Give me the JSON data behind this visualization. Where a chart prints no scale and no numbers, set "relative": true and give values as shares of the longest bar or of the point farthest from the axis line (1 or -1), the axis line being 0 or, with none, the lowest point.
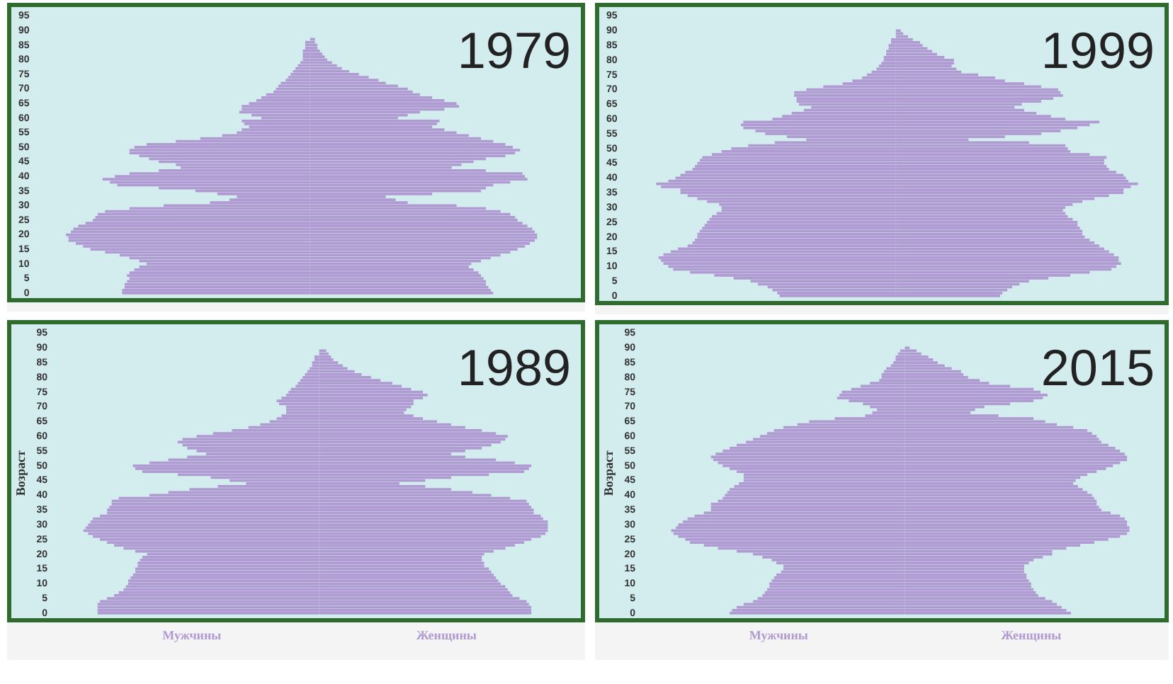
{
  "chart_data": [
    {
      "type": "bar",
      "title": "1979",
      "orientation": "horizontal",
      "relative": true,
      "tick_labels": "y",
      "categories": [
        "95",
        null,
        null,
        null,
        null,
        "90",
        null,
        null,
        null,
        null,
        "85",
        null,
        null,
        null,
        null,
        "80",
        null,
        null,
        null,
        null,
        "75",
        null,
        null,
        null,
        null,
        "70",
        null,
        null,
        null,
        null,
        "65",
        null,
        null,
        null,
        null,
        "60",
        null,
        null,
        null,
        null,
        "55",
        null,
        null,
        null,
        null,
        "50",
        null,
        null,
        null,
        null,
        "45",
        null,
        null,
        null,
        null,
        "40",
        null,
        null,
        null,
        null,
        "35",
        null,
        null,
        null,
        null,
        "30",
        null,
        null,
        null,
        null,
        "25",
        null,
        null,
        null,
        null,
        "20",
        null,
        null,
        null,
        null,
        "15",
        null,
        null,
        null,
        null,
        "10",
        null,
        null,
        null,
        null,
        "5",
        null,
        null,
        null,
        null,
        "0"
      ],
      "series": [
        {
          "color": "#b09ad2",
          "values": [
            0,
            0,
            0,
            0,
            0,
            0,
            0,
            0,
            0,
            -0.02,
            -0.02,
            -0.02,
            -0.03,
            -0.03,
            -0.03,
            -0.03,
            -0.04,
            -0.05,
            -0.06,
            -0.07,
            -0.08,
            -0.09,
            -0.1,
            -0.12,
            -0.13,
            -0.14,
            -0.15,
            -0.18,
            -0.2,
            -0.22,
            -0.25,
            -0.28,
            -0.28,
            -0.29,
            -0.24,
            -0.2,
            -0.28,
            -0.27,
            -0.25,
            -0.28,
            -0.3,
            -0.36,
            -0.45,
            -0.55,
            -0.67,
            -0.72,
            -0.74,
            -0.74,
            -0.7,
            -0.66,
            -0.62,
            -0.55,
            -0.53,
            -0.62,
            -0.74,
            -0.8,
            -0.85,
            -0.82,
            -0.79,
            -0.62,
            -0.47,
            -0.38,
            -0.3,
            -0.33,
            -0.41,
            -0.6,
            -0.74,
            -0.84,
            -0.87,
            -0.88,
            -0.89,
            -0.92,
            -0.95,
            -0.97,
            -0.98,
            -1,
            -0.99,
            -0.99,
            -0.96,
            -0.93,
            -0.9,
            -0.84,
            -0.78,
            -0.74,
            -0.7,
            -0.67,
            -0.7,
            -0.72,
            -0.74,
            -0.75,
            -0.74,
            -0.75,
            -0.76,
            -0.76,
            -0.77,
            -0.77
          ]
        },
        {
          "color": "#b09ad2",
          "values": [
            0,
            0,
            0,
            0,
            0,
            0,
            0,
            0,
            0.02,
            0.02,
            0.03,
            0.03,
            0.04,
            0.05,
            0.06,
            0.07,
            0.09,
            0.11,
            0.13,
            0.16,
            0.2,
            0.24,
            0.28,
            0.31,
            0.36,
            0.4,
            0.42,
            0.45,
            0.5,
            0.55,
            0.6,
            0.61,
            0.55,
            0.45,
            0.4,
            0.36,
            0.53,
            0.52,
            0.5,
            0.55,
            0.6,
            0.65,
            0.7,
            0.75,
            0.8,
            0.83,
            0.86,
            0.84,
            0.8,
            0.72,
            0.67,
            0.62,
            0.58,
            0.72,
            0.87,
            0.88,
            0.89,
            0.82,
            0.75,
            0.72,
            0.7,
            0.5,
            0.31,
            0.35,
            0.4,
            0.6,
            0.72,
            0.78,
            0.82,
            0.84,
            0.85,
            0.87,
            0.89,
            0.91,
            0.92,
            0.93,
            0.93,
            0.92,
            0.9,
            0.88,
            0.85,
            0.82,
            0.78,
            0.74,
            0.7,
            0.66,
            0.65,
            0.67,
            0.69,
            0.7,
            0.71,
            0.72,
            0.72,
            0.73,
            0.74,
            0.75
          ]
        }
      ]
    },
    {
      "type": "bar",
      "title": "1999",
      "orientation": "horizontal",
      "relative": true,
      "tick_labels": "y",
      "categories": [
        "95",
        null,
        null,
        null,
        null,
        "90",
        null,
        null,
        null,
        null,
        "85",
        null,
        null,
        null,
        null,
        "80",
        null,
        null,
        null,
        null,
        "75",
        null,
        null,
        null,
        null,
        "70",
        null,
        null,
        null,
        null,
        "65",
        null,
        null,
        null,
        null,
        "60",
        null,
        null,
        null,
        null,
        "55",
        null,
        null,
        null,
        null,
        "50",
        null,
        null,
        null,
        null,
        "45",
        null,
        null,
        null,
        null,
        "40",
        null,
        null,
        null,
        null,
        "35",
        null,
        null,
        null,
        null,
        "30",
        null,
        null,
        null,
        null,
        "25",
        null,
        null,
        null,
        null,
        "20",
        null,
        null,
        null,
        null,
        "15",
        null,
        null,
        null,
        null,
        "10",
        null,
        null,
        null,
        null,
        "5",
        null,
        null,
        null,
        null,
        "0"
      ],
      "series": [
        {
          "color": "#b09ad2",
          "values": [
            0,
            0,
            0,
            0,
            0,
            0,
            0,
            0,
            -0.02,
            -0.02,
            -0.03,
            -0.03,
            -0.04,
            -0.04,
            -0.05,
            -0.05,
            -0.06,
            -0.07,
            -0.08,
            -0.1,
            -0.12,
            -0.14,
            -0.18,
            -0.22,
            -0.3,
            -0.37,
            -0.42,
            -0.42,
            -0.41,
            -0.41,
            -0.4,
            -0.35,
            -0.38,
            -0.43,
            -0.47,
            -0.51,
            -0.63,
            -0.64,
            -0.63,
            -0.58,
            -0.54,
            -0.45,
            -0.37,
            -0.5,
            -0.61,
            -0.68,
            -0.72,
            -0.76,
            -0.8,
            -0.81,
            -0.82,
            -0.83,
            -0.84,
            -0.87,
            -0.89,
            -0.91,
            -0.94,
            -0.99,
            -0.97,
            -0.89,
            -0.89,
            -0.86,
            -0.82,
            -0.78,
            -0.73,
            -0.72,
            -0.72,
            -0.74,
            -0.76,
            -0.77,
            -0.78,
            -0.79,
            -0.8,
            -0.81,
            -0.82,
            -0.82,
            -0.83,
            -0.84,
            -0.86,
            -0.9,
            -0.93,
            -0.96,
            -0.98,
            -0.97,
            -0.96,
            -0.94,
            -0.92,
            -0.85,
            -0.75,
            -0.67,
            -0.6,
            -0.57,
            -0.53,
            -0.51,
            -0.49,
            -0.48
          ]
        },
        {
          "color": "#b09ad2",
          "values": [
            0,
            0,
            0,
            0,
            0,
            0.02,
            0.03,
            0.05,
            0.07,
            0.1,
            0.11,
            0.13,
            0.15,
            0.17,
            0.2,
            0.24,
            0.24,
            0.23,
            0.25,
            0.27,
            0.34,
            0.41,
            0.45,
            0.53,
            0.6,
            0.67,
            0.68,
            0.69,
            0.65,
            0.6,
            0.52,
            0.49,
            0.53,
            0.58,
            0.64,
            0.7,
            0.84,
            0.8,
            0.75,
            0.68,
            0.6,
            0.45,
            0.3,
            0.55,
            0.7,
            0.71,
            0.72,
            0.8,
            0.87,
            0.86,
            0.86,
            0.87,
            0.88,
            0.91,
            0.94,
            0.95,
            0.96,
            1,
            0.97,
            0.94,
            0.94,
            0.88,
            0.82,
            0.77,
            0.73,
            0.7,
            0.69,
            0.7,
            0.71,
            0.73,
            0.75,
            0.75,
            0.76,
            0.77,
            0.77,
            0.78,
            0.8,
            0.82,
            0.84,
            0.86,
            0.88,
            0.9,
            0.92,
            0.92,
            0.93,
            0.91,
            0.89,
            0.8,
            0.72,
            0.63,
            0.55,
            0.51,
            0.48,
            0.46,
            0.44,
            0.43
          ]
        }
      ]
    },
    {
      "type": "bar",
      "title": "1989",
      "orientation": "horizontal",
      "relative": true,
      "tick_labels": "y",
      "ylabel": "Возраст",
      "categories": [
        "95",
        null,
        null,
        null,
        null,
        "90",
        null,
        null,
        null,
        null,
        "85",
        null,
        null,
        null,
        null,
        "80",
        null,
        null,
        null,
        null,
        "75",
        null,
        null,
        null,
        null,
        "70",
        null,
        null,
        null,
        null,
        "65",
        null,
        null,
        null,
        null,
        "60",
        null,
        null,
        null,
        null,
        "55",
        null,
        null,
        null,
        null,
        "50",
        null,
        null,
        null,
        null,
        "45",
        null,
        null,
        null,
        null,
        "40",
        null,
        null,
        null,
        null,
        "35",
        null,
        null,
        null,
        null,
        "30",
        null,
        null,
        null,
        null,
        "25",
        null,
        null,
        null,
        null,
        "20",
        null,
        null,
        null,
        null,
        "15",
        null,
        null,
        null,
        null,
        "10",
        null,
        null,
        null,
        null,
        "5",
        null,
        null,
        null,
        null,
        "0"
      ],
      "series": [
        {
          "name": "Мужчины",
          "color": "#b09ad2",
          "values": [
            0,
            0,
            0,
            0,
            0,
            0,
            0,
            0,
            -0.02,
            -0.02,
            -0.03,
            -0.03,
            -0.04,
            -0.05,
            -0.06,
            -0.07,
            -0.08,
            -0.09,
            -0.1,
            -0.12,
            -0.13,
            -0.14,
            -0.16,
            -0.18,
            -0.17,
            -0.14,
            -0.14,
            -0.14,
            -0.16,
            -0.18,
            -0.21,
            -0.25,
            -0.3,
            -0.37,
            -0.45,
            -0.52,
            -0.58,
            -0.6,
            -0.58,
            -0.56,
            -0.52,
            -0.48,
            -0.56,
            -0.64,
            -0.72,
            -0.79,
            -0.78,
            -0.75,
            -0.6,
            -0.46,
            -0.38,
            -0.31,
            -0.43,
            -0.55,
            -0.64,
            -0.72,
            -0.85,
            -0.88,
            -0.88,
            -0.89,
            -0.9,
            -0.9,
            -0.93,
            -0.96,
            -0.97,
            -0.98,
            -0.99,
            -1,
            -0.98,
            -0.96,
            -0.93,
            -0.9,
            -0.87,
            -0.83,
            -0.78,
            -0.73,
            -0.75,
            -0.76,
            -0.77,
            -0.77,
            -0.78,
            -0.78,
            -0.79,
            -0.8,
            -0.81,
            -0.81,
            -0.82,
            -0.83,
            -0.85,
            -0.87,
            -0.9,
            -0.93,
            -0.94,
            -0.94,
            -0.94,
            -0.94
          ]
        },
        {
          "name": "Женщины",
          "color": "#b09ad2",
          "values": [
            0,
            0,
            0,
            0,
            0,
            0,
            0.03,
            0.04,
            0.05,
            0.06,
            0.08,
            0.1,
            0.12,
            0.15,
            0.18,
            0.22,
            0.26,
            0.31,
            0.35,
            0.39,
            0.44,
            0.46,
            0.44,
            0.4,
            0.4,
            0.39,
            0.37,
            0.36,
            0.4,
            0.44,
            0.5,
            0.56,
            0.62,
            0.69,
            0.75,
            0.8,
            0.79,
            0.77,
            0.73,
            0.69,
            0.62,
            0.56,
            0.62,
            0.75,
            0.83,
            0.9,
            0.89,
            0.87,
            0.72,
            0.56,
            0.45,
            0.34,
            0.45,
            0.56,
            0.65,
            0.73,
            0.81,
            0.88,
            0.89,
            0.9,
            0.91,
            0.91,
            0.94,
            0.95,
            0.97,
            0.97,
            0.97,
            0.97,
            0.96,
            0.94,
            0.9,
            0.87,
            0.83,
            0.79,
            0.74,
            0.7,
            0.69,
            0.69,
            0.7,
            0.7,
            0.72,
            0.73,
            0.74,
            0.75,
            0.76,
            0.77,
            0.79,
            0.8,
            0.81,
            0.82,
            0.85,
            0.88,
            0.89,
            0.9,
            0.9,
            0.9
          ]
        }
      ]
    },
    {
      "type": "bar",
      "title": "2015",
      "orientation": "horizontal",
      "relative": true,
      "tick_labels": "y",
      "ylabel": "Возраст",
      "categories": [
        "95",
        null,
        null,
        null,
        null,
        "90",
        null,
        null,
        null,
        null,
        "85",
        null,
        null,
        null,
        null,
        "80",
        null,
        null,
        null,
        null,
        "75",
        null,
        null,
        null,
        null,
        "70",
        null,
        null,
        null,
        null,
        "65",
        null,
        null,
        null,
        null,
        "60",
        null,
        null,
        null,
        null,
        "55",
        null,
        null,
        null,
        null,
        "50",
        null,
        null,
        null,
        null,
        "45",
        null,
        null,
        null,
        null,
        "40",
        null,
        null,
        null,
        null,
        "35",
        null,
        null,
        null,
        null,
        "30",
        null,
        null,
        null,
        null,
        "25",
        null,
        null,
        null,
        null,
        "20",
        null,
        null,
        null,
        null,
        "15",
        null,
        null,
        null,
        null,
        "10",
        null,
        null,
        null,
        null,
        "5",
        null,
        null,
        null,
        null,
        "0"
      ],
      "series": [
        {
          "name": "Мужчины",
          "color": "#b09ad2",
          "values": [
            0,
            0,
            0,
            0,
            0,
            0,
            -0.02,
            -0.03,
            -0.04,
            -0.04,
            -0.05,
            -0.06,
            -0.08,
            -0.09,
            -0.1,
            -0.1,
            -0.11,
            -0.15,
            -0.19,
            -0.23,
            -0.27,
            -0.28,
            -0.29,
            -0.24,
            -0.18,
            -0.15,
            -0.12,
            -0.14,
            -0.17,
            -0.3,
            -0.41,
            -0.46,
            -0.52,
            -0.56,
            -0.59,
            -0.62,
            -0.65,
            -0.68,
            -0.72,
            -0.75,
            -0.78,
            -0.81,
            -0.83,
            -0.82,
            -0.8,
            -0.78,
            -0.75,
            -0.72,
            -0.69,
            -0.69,
            -0.69,
            -0.71,
            -0.73,
            -0.75,
            -0.76,
            -0.77,
            -0.78,
            -0.8,
            -0.83,
            -0.83,
            -0.83,
            -0.86,
            -0.9,
            -0.93,
            -0.95,
            -0.97,
            -0.98,
            -1,
            -0.99,
            -0.97,
            -0.94,
            -0.92,
            -0.86,
            -0.8,
            -0.72,
            -0.65,
            -0.61,
            -0.57,
            -0.55,
            -0.52,
            -0.52,
            -0.53,
            -0.55,
            -0.56,
            -0.57,
            -0.58,
            -0.58,
            -0.59,
            -0.6,
            -0.61,
            -0.63,
            -0.65,
            -0.69,
            -0.72,
            -0.74,
            -0.75
          ]
        },
        {
          "name": "Женщины",
          "color": "#b09ad2",
          "values": [
            0,
            0,
            0,
            0,
            0,
            0.02,
            0.05,
            0.07,
            0.1,
            0.12,
            0.14,
            0.17,
            0.2,
            0.24,
            0.25,
            0.27,
            0.32,
            0.36,
            0.45,
            0.55,
            0.58,
            0.61,
            0.59,
            0.55,
            0.45,
            0.34,
            0.3,
            0.28,
            0.4,
            0.55,
            0.6,
            0.65,
            0.72,
            0.78,
            0.8,
            0.82,
            0.83,
            0.84,
            0.87,
            0.9,
            0.92,
            0.94,
            0.95,
            0.95,
            0.92,
            0.89,
            0.86,
            0.82,
            0.78,
            0.75,
            0.73,
            0.72,
            0.74,
            0.76,
            0.78,
            0.8,
            0.81,
            0.82,
            0.82,
            0.83,
            0.84,
            0.88,
            0.92,
            0.94,
            0.95,
            0.95,
            0.96,
            0.96,
            0.95,
            0.92,
            0.87,
            0.81,
            0.75,
            0.69,
            0.63,
            0.63,
            0.59,
            0.55,
            0.53,
            0.51,
            0.51,
            0.51,
            0.52,
            0.52,
            0.53,
            0.54,
            0.54,
            0.55,
            0.56,
            0.57,
            0.6,
            0.63,
            0.65,
            0.67,
            0.69,
            0.71
          ]
        }
      ]
    }
  ]
}
